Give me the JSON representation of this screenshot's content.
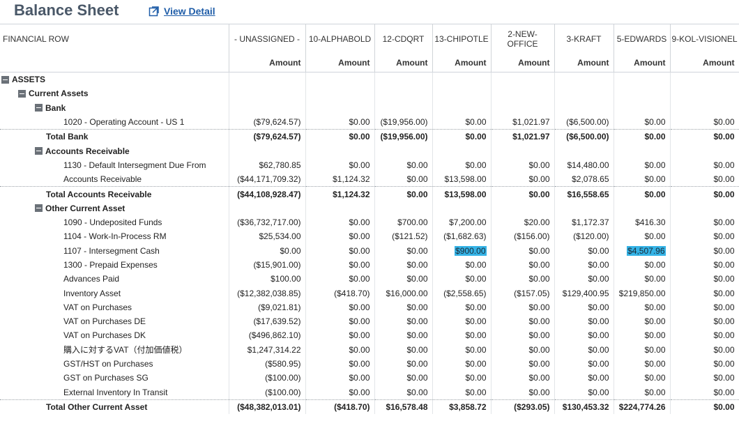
{
  "header": {
    "title": "Balance Sheet",
    "view_detail": "View Detail"
  },
  "table": {
    "first_col_header": "FINANCIAL ROW",
    "columns": [
      "- UNASSIGNED -",
      "10-ALPHABOLD",
      "12-CDQRT",
      "13-CHIPOTLE",
      "2-NEW-\nOFFICE",
      "3-KRAFT",
      "5-EDWARDS",
      "9-KOL-VISIONEL"
    ],
    "sub_header": "Amount",
    "rows": [
      {
        "type": "section",
        "level": 0,
        "label": "ASSETS"
      },
      {
        "type": "section",
        "level": 1,
        "label": "Current Assets"
      },
      {
        "type": "section",
        "level": 2,
        "label": "Bank"
      },
      {
        "type": "line",
        "label": "1020 - Operating Account - US 1",
        "values": [
          "($79,624.57)",
          "$0.00",
          "($19,956.00)",
          "$0.00",
          "$1,021.97",
          "($6,500.00)",
          "$0.00",
          "$0.00"
        ]
      },
      {
        "type": "total",
        "label": "Total Bank",
        "values": [
          "($79,624.57)",
          "$0.00",
          "($19,956.00)",
          "$0.00",
          "$1,021.97",
          "($6,500.00)",
          "$0.00",
          "$0.00"
        ]
      },
      {
        "type": "section",
        "level": 2,
        "label": "Accounts Receivable"
      },
      {
        "type": "line",
        "label": "1130 - Default Intersegment Due From",
        "values": [
          "$62,780.85",
          "$0.00",
          "$0.00",
          "$0.00",
          "$0.00",
          "$14,480.00",
          "$0.00",
          "$0.00"
        ]
      },
      {
        "type": "line",
        "label": "Accounts Receivable",
        "values": [
          "($44,171,709.32)",
          "$1,124.32",
          "$0.00",
          "$13,598.00",
          "$0.00",
          "$2,078.65",
          "$0.00",
          "$0.00"
        ]
      },
      {
        "type": "total",
        "label": "Total Accounts Receivable",
        "values": [
          "($44,108,928.47)",
          "$1,124.32",
          "$0.00",
          "$13,598.00",
          "$0.00",
          "$16,558.65",
          "$0.00",
          "$0.00"
        ]
      },
      {
        "type": "section",
        "level": 2,
        "label": "Other Current Asset"
      },
      {
        "type": "line",
        "label": "1090 - Undeposited Funds",
        "values": [
          "($36,732,717.00)",
          "$0.00",
          "$700.00",
          "$7,200.00",
          "$20.00",
          "$1,172.37",
          "$416.30",
          "$0.00"
        ]
      },
      {
        "type": "line",
        "label": "1104 - Work-In-Process RM",
        "values": [
          "$25,534.00",
          "$0.00",
          "($121.52)",
          "($1,682.63)",
          "($156.00)",
          "($120.00)",
          "$0.00",
          "$0.00"
        ]
      },
      {
        "type": "line",
        "label": "1107 - Intersegment Cash",
        "values": [
          "$0.00",
          "$0.00",
          "$0.00",
          "$900.00",
          "$0.00",
          "$0.00",
          "$4,507.96",
          "$0.00"
        ],
        "highlight": [
          3,
          6
        ]
      },
      {
        "type": "line",
        "label": "1300 - Prepaid Expenses",
        "values": [
          "($15,901.00)",
          "$0.00",
          "$0.00",
          "$0.00",
          "$0.00",
          "$0.00",
          "$0.00",
          "$0.00"
        ]
      },
      {
        "type": "line",
        "label": "Advances Paid",
        "values": [
          "$100.00",
          "$0.00",
          "$0.00",
          "$0.00",
          "$0.00",
          "$0.00",
          "$0.00",
          "$0.00"
        ]
      },
      {
        "type": "line",
        "label": "Inventory Asset",
        "values": [
          "($12,382,038.85)",
          "($418.70)",
          "$16,000.00",
          "($2,558.65)",
          "($157.05)",
          "$129,400.95",
          "$219,850.00",
          "$0.00"
        ]
      },
      {
        "type": "line",
        "label": "VAT on Purchases",
        "values": [
          "($9,021.81)",
          "$0.00",
          "$0.00",
          "$0.00",
          "$0.00",
          "$0.00",
          "$0.00",
          "$0.00"
        ]
      },
      {
        "type": "line",
        "label": "VAT on Purchases DE",
        "values": [
          "($17,639.52)",
          "$0.00",
          "$0.00",
          "$0.00",
          "$0.00",
          "$0.00",
          "$0.00",
          "$0.00"
        ]
      },
      {
        "type": "line",
        "label": "VAT on Purchases DK",
        "values": [
          "($496,862.10)",
          "$0.00",
          "$0.00",
          "$0.00",
          "$0.00",
          "$0.00",
          "$0.00",
          "$0.00"
        ]
      },
      {
        "type": "line",
        "label": "購入に対するVAT（付加価値税）",
        "values": [
          "$1,247,314.22",
          "$0.00",
          "$0.00",
          "$0.00",
          "$0.00",
          "$0.00",
          "$0.00",
          "$0.00"
        ]
      },
      {
        "type": "line",
        "label": "GST/HST on Purchases",
        "values": [
          "($580.95)",
          "$0.00",
          "$0.00",
          "$0.00",
          "$0.00",
          "$0.00",
          "$0.00",
          "$0.00"
        ]
      },
      {
        "type": "line",
        "label": "GST on Purchases SG",
        "values": [
          "($100.00)",
          "$0.00",
          "$0.00",
          "$0.00",
          "$0.00",
          "$0.00",
          "$0.00",
          "$0.00"
        ]
      },
      {
        "type": "line",
        "label": "External Inventory In Transit",
        "values": [
          "($100.00)",
          "$0.00",
          "$0.00",
          "$0.00",
          "$0.00",
          "$0.00",
          "$0.00",
          "$0.00"
        ]
      },
      {
        "type": "total",
        "label": "Total Other Current Asset",
        "values": [
          "($48,382,013.01)",
          "($418.70)",
          "$16,578.48",
          "$3,858.72",
          "($293.05)",
          "$130,453.32",
          "$224,774.26",
          "$0.00"
        ]
      }
    ]
  }
}
